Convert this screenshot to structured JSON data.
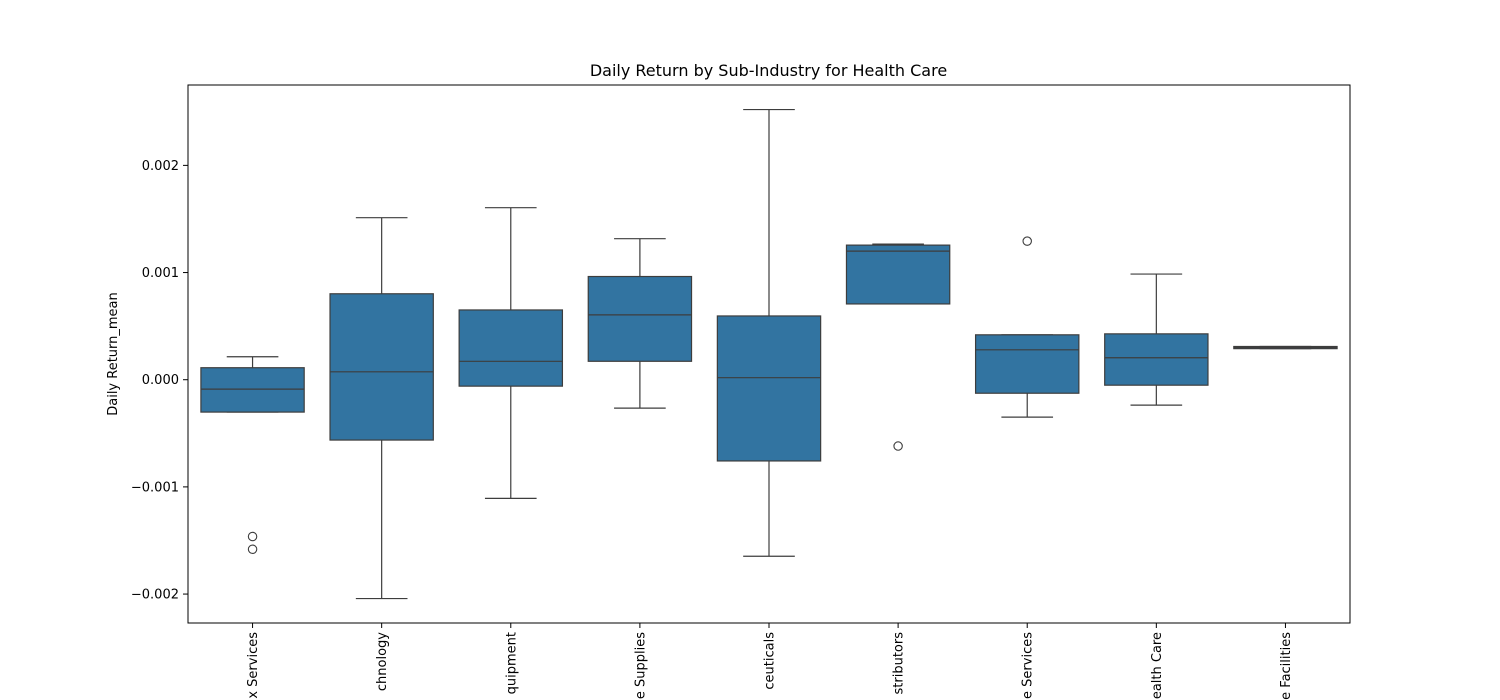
{
  "chart_data": {
    "type": "box",
    "title": "Daily Return by Sub-Industry for Health Care",
    "xlabel": "",
    "ylabel": "Daily Return_mean",
    "ylim": [
      -0.00227,
      0.00275
    ],
    "yticks": [
      -0.002,
      -0.001,
      0.0,
      0.001,
      0.002
    ],
    "ytick_labels": [
      "−0.002",
      "−0.001",
      "0.000",
      "0.001",
      "0.002"
    ],
    "color": "#3274a1",
    "categories": [
      "x Services",
      "chnology",
      "quipment",
      "e Supplies",
      "ceuticals",
      "stributors",
      "e Services",
      "ealth Care",
      "e Facilities"
    ],
    "boxes": [
      {
        "whisker_low": -0.000302,
        "q1": -0.000302,
        "median": -8.8e-05,
        "q3": 0.000112,
        "whisker_high": 0.000214,
        "outliers": [
          -0.001463,
          -0.001582
        ]
      },
      {
        "whisker_low": -0.002042,
        "q1": -0.000563,
        "median": 7.4e-05,
        "q3": 0.000802,
        "whisker_high": 0.001512,
        "outliers": []
      },
      {
        "whisker_low": -0.001107,
        "q1": -6e-05,
        "median": 0.000172,
        "q3": 0.000651,
        "whisker_high": 0.001605,
        "outliers": []
      },
      {
        "whisker_low": -0.000265,
        "q1": 0.000172,
        "median": 0.000605,
        "q3": 0.000963,
        "whisker_high": 0.001316,
        "outliers": []
      },
      {
        "whisker_low": -0.001647,
        "q1": -0.000758,
        "median": 1.9e-05,
        "q3": 0.000595,
        "whisker_high": 0.002521,
        "outliers": []
      },
      {
        "whisker_low": 0.000707,
        "q1": 0.000707,
        "median": 0.0012,
        "q3": 0.001256,
        "whisker_high": 0.001265,
        "outliers": [
          -0.000619
        ]
      },
      {
        "whisker_low": -0.000349,
        "q1": -0.000126,
        "median": 0.000279,
        "q3": 0.000419,
        "whisker_high": 0.000419,
        "outliers": [
          0.001293
        ]
      },
      {
        "whisker_low": -0.000237,
        "q1": -5.1e-05,
        "median": 0.000205,
        "q3": 0.000428,
        "whisker_high": 0.000986,
        "outliers": []
      },
      {
        "whisker_low": 0.00029,
        "q1": 0.00029,
        "median": 0.0003,
        "q3": 0.00031,
        "whisker_high": 0.00031,
        "outliers": []
      }
    ]
  }
}
